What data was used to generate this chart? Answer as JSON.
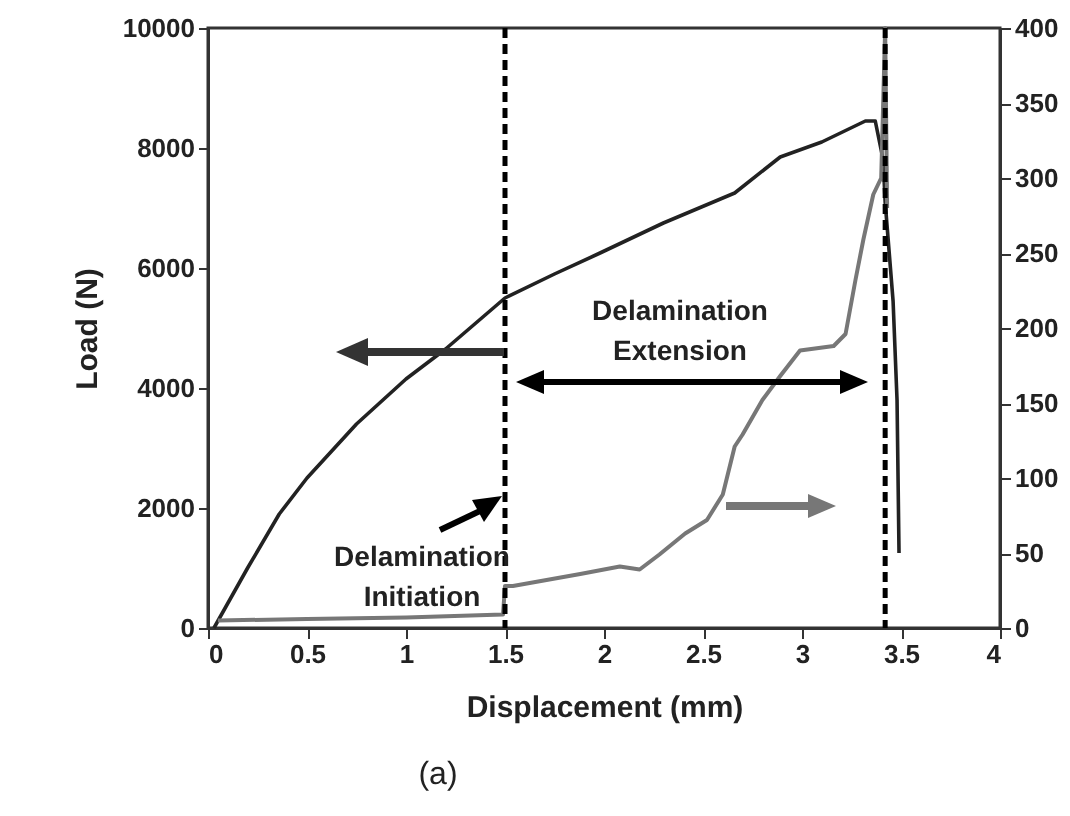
{
  "chart_data": {
    "type": "line",
    "xlabel": "Displacement (mm)",
    "ylabel": "Load (N)",
    "annotations": [
      "Delamination Initiation",
      "Delamination Extension",
      "(a)"
    ],
    "xlim": [
      0,
      4
    ],
    "xticks": [
      0,
      0.5,
      1,
      1.5,
      2,
      2.5,
      3,
      3.5,
      4
    ],
    "ylim": [
      0,
      10000
    ],
    "yticks": [
      0,
      2000,
      4000,
      6000,
      8000,
      10000
    ],
    "y2lim": [
      0,
      400
    ],
    "y2ticks": [
      0,
      50,
      100,
      150,
      200,
      250,
      300,
      350,
      400
    ],
    "series": [
      {
        "color": "#222222",
        "x": [
          0.03,
          0.2,
          0.36,
          0.5,
          0.75,
          1,
          1.2,
          1.5,
          1.75,
          1.98,
          2.3,
          2.66,
          2.89,
          3.1,
          3.32,
          3.37,
          3.41,
          3.42,
          3.46,
          3.48,
          3.49
        ],
        "values": [
          0,
          1000,
          1900,
          2500,
          3400,
          4150,
          4650,
          5500,
          5900,
          6250,
          6750,
          7250,
          7850,
          8100,
          8450,
          8450,
          7800,
          7100,
          5450,
          3800,
          1250
        ]
      },
      {
        "color": "#777777",
        "axis": "y2",
        "x": [
          0.05,
          0.5,
          1,
          1.49,
          1.5,
          1.54,
          1.88,
          2.08,
          2.18,
          2.28,
          2.41,
          2.52,
          2.6,
          2.66,
          2.7,
          2.8,
          2.89,
          2.99,
          3.16,
          3.22,
          3.27,
          3.31,
          3.36,
          3.4,
          3.42,
          3.43
        ],
        "values": [
          5,
          6,
          7,
          9,
          28,
          28,
          36,
          41,
          39,
          49,
          63,
          72,
          89,
          121,
          129,
          152,
          168,
          185,
          188,
          196,
          232,
          259,
          289,
          300,
          400,
          280
        ]
      }
    ],
    "ref_lines": [
      {
        "axis": "x",
        "value": 1.5,
        "color": "#000000",
        "line_style": "dashed"
      },
      {
        "axis": "x",
        "value": 3.42,
        "color": "#000000",
        "line_style": "dashed"
      }
    ],
    "grid": false
  }
}
